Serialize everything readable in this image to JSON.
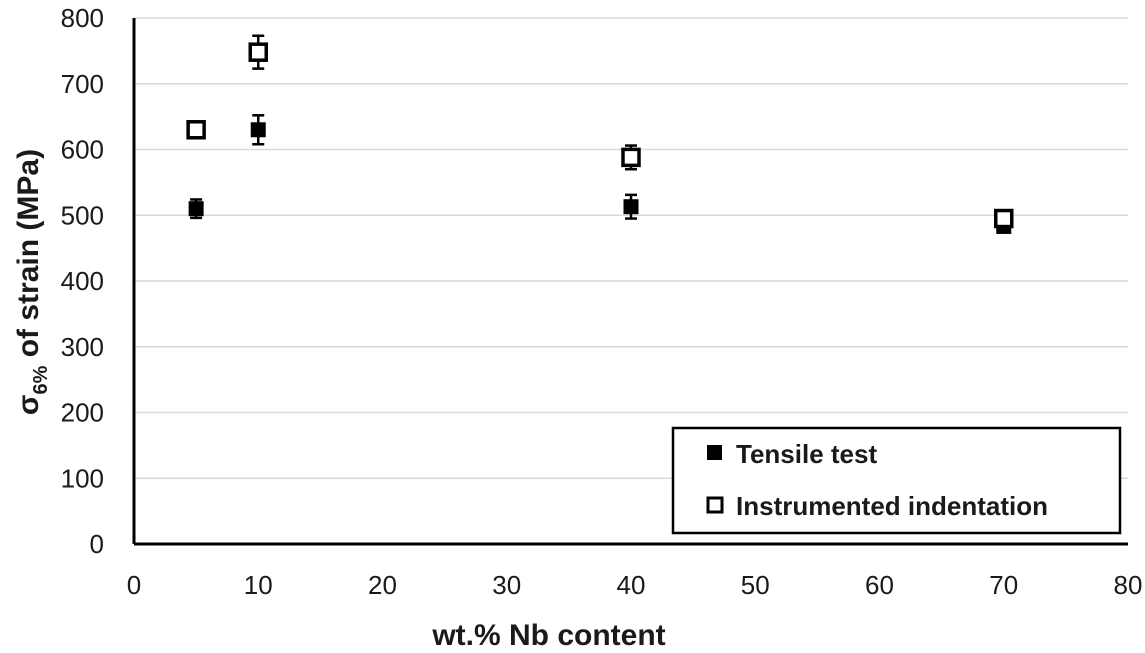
{
  "chart_data": {
    "type": "scatter",
    "xlabel": "wt.% Nb content",
    "ylabel": {
      "symbol": "σ",
      "subscript": "6%",
      "rest": " of strain (MPa)"
    },
    "xlim": [
      0,
      80
    ],
    "ylim": [
      0,
      800
    ],
    "xticks": [
      0,
      10,
      20,
      30,
      40,
      50,
      60,
      70,
      80
    ],
    "yticks": [
      0,
      100,
      200,
      300,
      400,
      500,
      600,
      700,
      800
    ],
    "grid": "horizontal",
    "legend_position": "bottom-right",
    "series": [
      {
        "name": "Tensile test",
        "marker": "filled-square",
        "color": "#000000",
        "points": [
          {
            "x": 5,
            "y": 510,
            "err": 14
          },
          {
            "x": 10,
            "y": 630,
            "err": 22
          },
          {
            "x": 40,
            "y": 513,
            "err": 18
          },
          {
            "x": 70,
            "y": 483,
            "err": 6
          }
        ]
      },
      {
        "name": "Instrumented indentation",
        "marker": "open-square",
        "color": "#000000",
        "points": [
          {
            "x": 5,
            "y": 630,
            "err": 5
          },
          {
            "x": 10,
            "y": 748,
            "err": 25
          },
          {
            "x": 40,
            "y": 588,
            "err": 18
          },
          {
            "x": 70,
            "y": 495,
            "err": 6
          }
        ]
      }
    ]
  }
}
